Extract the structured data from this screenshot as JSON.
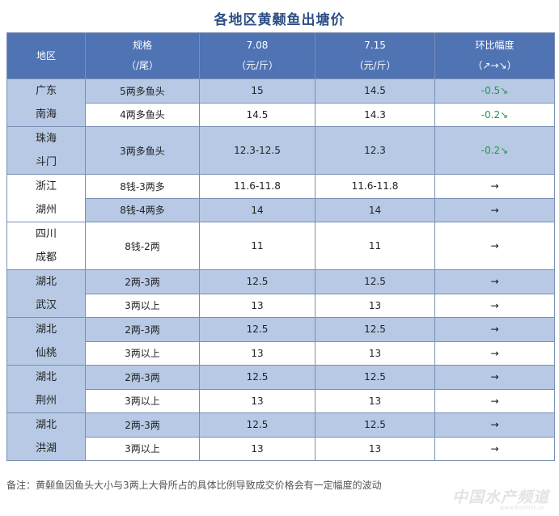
{
  "title": "各地区黄颡鱼出塘价",
  "header": {
    "region": "地区",
    "spec_line1": "规格",
    "spec_line2": "（/尾）",
    "date1_line1": "7.08",
    "date1_line2": "（元/斤）",
    "date2_line1": "7.15",
    "date2_line2": "（元/斤）",
    "change_line1": "环比幅度",
    "change_line2": "（↗→↘）"
  },
  "groups": [
    {
      "region_line1": "广东",
      "region_line2": "南海",
      "shade": "blue",
      "rows": [
        {
          "spec": "5两多鱼头",
          "p1": "15",
          "p2": "14.5",
          "change": "-0.5↘",
          "trend": "down",
          "shade": "blue"
        },
        {
          "spec": "4两多鱼头",
          "p1": "14.5",
          "p2": "14.3",
          "change": "-0.2↘",
          "trend": "down",
          "shade": "white"
        }
      ]
    },
    {
      "region_line1": "珠海",
      "region_line2": "斗门",
      "shade": "blue",
      "rows": [
        {
          "spec": "3两多鱼头",
          "p1": "12.3-12.5",
          "p2": "12.3",
          "change": "-0.2↘",
          "trend": "down",
          "shade": "blue",
          "tall": true
        }
      ]
    },
    {
      "region_line1": "浙江",
      "region_line2": "湖州",
      "shade": "white",
      "rows": [
        {
          "spec": "8钱-3两多",
          "p1": "11.6-11.8",
          "p2": "11.6-11.8",
          "change": "→",
          "trend": "flat",
          "shade": "white"
        },
        {
          "spec": "8钱-4两多",
          "p1": "14",
          "p2": "14",
          "change": "→",
          "trend": "flat",
          "shade": "blue"
        }
      ]
    },
    {
      "region_line1": "四川",
      "region_line2": "成都",
      "shade": "white",
      "rows": [
        {
          "spec": "8钱-2两",
          "p1": "11",
          "p2": "11",
          "change": "→",
          "trend": "flat",
          "shade": "white",
          "tall": true
        }
      ]
    },
    {
      "region_line1": "湖北",
      "region_line2": "武汉",
      "shade": "blue",
      "rows": [
        {
          "spec": "2两-3两",
          "p1": "12.5",
          "p2": "12.5",
          "change": "→",
          "trend": "flat",
          "shade": "blue"
        },
        {
          "spec": "3两以上",
          "p1": "13",
          "p2": "13",
          "change": "→",
          "trend": "flat",
          "shade": "white"
        }
      ]
    },
    {
      "region_line1": "湖北",
      "region_line2": "仙桃",
      "shade": "blue",
      "rows": [
        {
          "spec": "2两-3两",
          "p1": "12.5",
          "p2": "12.5",
          "change": "→",
          "trend": "flat",
          "shade": "blue"
        },
        {
          "spec": "3两以上",
          "p1": "13",
          "p2": "13",
          "change": "→",
          "trend": "flat",
          "shade": "white"
        }
      ]
    },
    {
      "region_line1": "湖北",
      "region_line2": "荆州",
      "shade": "blue",
      "rows": [
        {
          "spec": "2两-3两",
          "p1": "12.5",
          "p2": "12.5",
          "change": "→",
          "trend": "flat",
          "shade": "blue"
        },
        {
          "spec": "3两以上",
          "p1": "13",
          "p2": "13",
          "change": "→",
          "trend": "flat",
          "shade": "white"
        }
      ]
    },
    {
      "region_line1": "湖北",
      "region_line2": "洪湖",
      "shade": "blue",
      "rows": [
        {
          "spec": "2两-3两",
          "p1": "12.5",
          "p2": "12.5",
          "change": "→",
          "trend": "flat",
          "shade": "blue"
        },
        {
          "spec": "3两以上",
          "p1": "13",
          "p2": "13",
          "change": "→",
          "trend": "flat",
          "shade": "white"
        }
      ]
    }
  ],
  "note": "备注：黄颡鱼因鱼头大小与3两上大骨所占的具体比例导致成交价格会有一定幅度的波动",
  "watermark": {
    "text": "中国水产频道",
    "sub": "www.fishfirst.cn"
  },
  "colors": {
    "title": "#2e4f86",
    "header_bg": "#4f73b3",
    "row_blue": "#b7c9e4",
    "row_white": "#ffffff",
    "border": "#7a8fb3",
    "down": "#1f9a45"
  }
}
